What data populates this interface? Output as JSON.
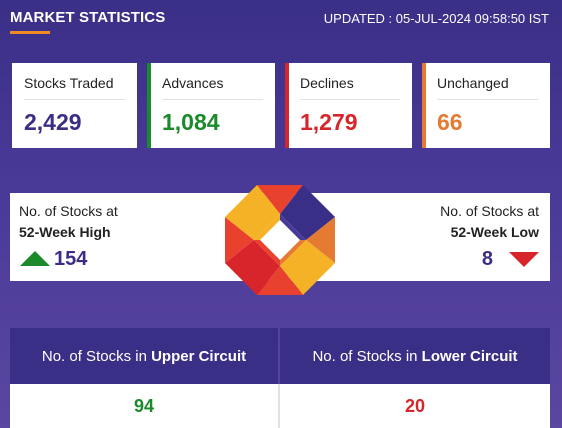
{
  "header": {
    "title": "MARKET STATISTICS",
    "updated": "UPDATED : 05-JUL-2024 09:58:50 IST"
  },
  "stats": {
    "stocks_traded": {
      "label": "Stocks Traded",
      "value": "2,429"
    },
    "advances": {
      "label": "Advances",
      "value": "1,084"
    },
    "declines": {
      "label": "Declines",
      "value": "1,279"
    },
    "unchanged": {
      "label": "Unchanged",
      "value": "66"
    }
  },
  "week52": {
    "high": {
      "line1": "No. of Stocks at",
      "line2": "52-Week High",
      "value": "154"
    },
    "low": {
      "line1": "No. of Stocks at",
      "line2": "52-Week Low",
      "value": "8"
    }
  },
  "circuit": {
    "upper": {
      "prefix": "No. of Stocks in ",
      "emph": "Upper Circuit",
      "value": "94"
    },
    "lower": {
      "prefix": "No. of Stocks in ",
      "emph": "Lower Circuit",
      "value": "20"
    }
  },
  "colors": {
    "brand_purple": "#3a2f86",
    "advance_green": "#1a8a2a",
    "decline_red": "#d8242b",
    "unchanged_orange": "#e57b33",
    "accent_orange": "#f08a24"
  },
  "icons": {
    "logo": "octagon-logo-icon",
    "high": "triangle-up-icon",
    "low": "triangle-down-icon"
  }
}
